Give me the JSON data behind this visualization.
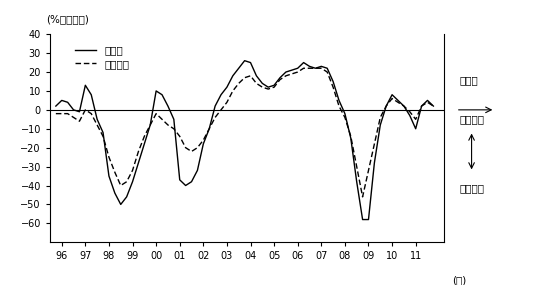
{
  "title_y": "(%ポイント)",
  "xlabel": "(年)",
  "legend_manufacturing": "製造業",
  "legend_non_manufacturing": "非製造業",
  "annotation_senkoki": "先行き",
  "annotation_yoi": "「良い」",
  "annotation_warui": "「悪い」",
  "ylim": [
    -70,
    40
  ],
  "yticks": [
    -60,
    -50,
    -40,
    -30,
    -20,
    -10,
    0,
    10,
    20,
    30,
    40
  ],
  "xlim": [
    1995.5,
    2012.2
  ],
  "xtick_positions": [
    1996,
    1997,
    1998,
    1999,
    2000,
    2001,
    2002,
    2003,
    2004,
    2005,
    2006,
    2007,
    2008,
    2009,
    2010,
    2011
  ],
  "xtick_labels": [
    "96",
    "97",
    "98",
    "99",
    "00",
    "01",
    "02",
    "03",
    "04",
    "05",
    "06",
    "07",
    "08",
    "09",
    "10",
    "11"
  ],
  "manufacturing_x": [
    1995.75,
    1996.0,
    1996.25,
    1996.5,
    1996.75,
    1997.0,
    1997.25,
    1997.5,
    1997.75,
    1998.0,
    1998.25,
    1998.5,
    1998.75,
    1999.0,
    1999.25,
    1999.5,
    1999.75,
    2000.0,
    2000.25,
    2000.5,
    2000.75,
    2001.0,
    2001.25,
    2001.5,
    2001.75,
    2002.0,
    2002.25,
    2002.5,
    2002.75,
    2003.0,
    2003.25,
    2003.5,
    2003.75,
    2004.0,
    2004.25,
    2004.5,
    2004.75,
    2005.0,
    2005.25,
    2005.5,
    2005.75,
    2006.0,
    2006.25,
    2006.5,
    2006.75,
    2007.0,
    2007.25,
    2007.5,
    2007.75,
    2008.0,
    2008.25,
    2008.5,
    2008.75,
    2009.0,
    2009.25,
    2009.5,
    2009.75,
    2010.0,
    2010.25,
    2010.5,
    2010.75,
    2011.0,
    2011.25,
    2011.5,
    2011.75
  ],
  "manufacturing_y": [
    2,
    5,
    4,
    0,
    -1,
    13,
    8,
    -5,
    -12,
    -35,
    -44,
    -50,
    -46,
    -38,
    -28,
    -18,
    -8,
    10,
    8,
    2,
    -5,
    -37,
    -40,
    -38,
    -32,
    -18,
    -10,
    2,
    8,
    12,
    18,
    22,
    26,
    25,
    18,
    14,
    12,
    13,
    17,
    20,
    21,
    22,
    25,
    23,
    22,
    23,
    22,
    15,
    5,
    -2,
    -15,
    -38,
    -58,
    -58,
    -28,
    -8,
    2,
    8,
    5,
    2,
    -3,
    -10,
    2,
    5,
    2
  ],
  "non_manufacturing_x": [
    1995.75,
    1996.0,
    1996.25,
    1996.5,
    1996.75,
    1997.0,
    1997.25,
    1997.5,
    1997.75,
    1998.0,
    1998.25,
    1998.5,
    1998.75,
    1999.0,
    1999.25,
    1999.5,
    1999.75,
    2000.0,
    2000.25,
    2000.5,
    2000.75,
    2001.0,
    2001.25,
    2001.5,
    2001.75,
    2002.0,
    2002.25,
    2002.5,
    2002.75,
    2003.0,
    2003.25,
    2003.5,
    2003.75,
    2004.0,
    2004.25,
    2004.5,
    2004.75,
    2005.0,
    2005.25,
    2005.5,
    2005.75,
    2006.0,
    2006.25,
    2006.5,
    2006.75,
    2007.0,
    2007.25,
    2007.5,
    2007.75,
    2008.0,
    2008.25,
    2008.5,
    2008.75,
    2009.0,
    2009.25,
    2009.5,
    2009.75,
    2010.0,
    2010.25,
    2010.5,
    2010.75,
    2011.0,
    2011.25,
    2011.5,
    2011.75
  ],
  "non_manufacturing_y": [
    -2,
    -2,
    -2,
    -4,
    -6,
    0,
    -2,
    -8,
    -14,
    -25,
    -33,
    -40,
    -38,
    -32,
    -22,
    -14,
    -8,
    -2,
    -5,
    -8,
    -10,
    -14,
    -20,
    -22,
    -20,
    -16,
    -10,
    -4,
    0,
    4,
    10,
    14,
    17,
    18,
    14,
    12,
    11,
    12,
    16,
    18,
    19,
    20,
    22,
    22,
    22,
    22,
    20,
    12,
    2,
    -4,
    -14,
    -30,
    -46,
    -32,
    -18,
    -4,
    2,
    6,
    4,
    2,
    -1,
    -5,
    2,
    4,
    2
  ]
}
